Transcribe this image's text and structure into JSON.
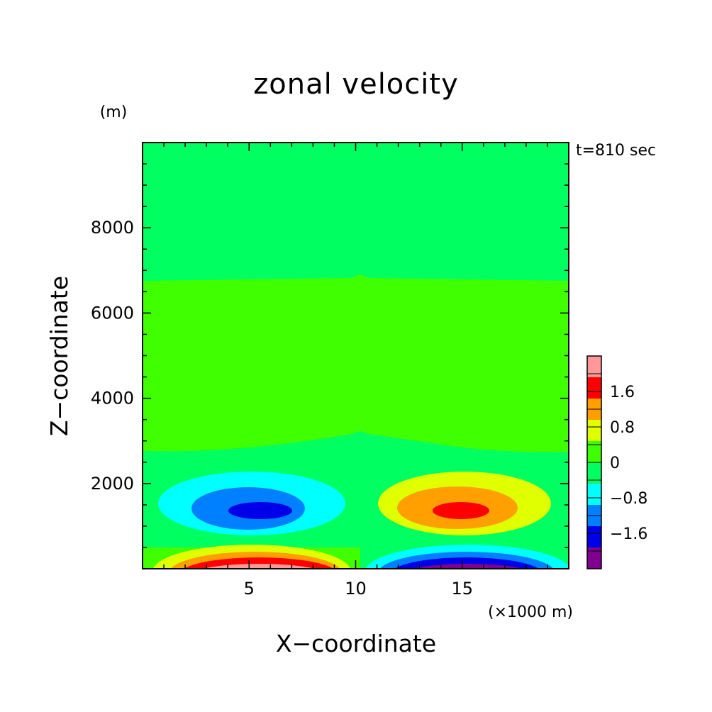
{
  "chart_data": {
    "type": "heatmap",
    "title": "zonal velocity",
    "xlabel": "X−coordinate",
    "ylabel": "Z−coordinate",
    "x_unit": "(×1000 m)",
    "y_unit": "(m)",
    "time_label": "t=810 sec",
    "xlim": [
      0,
      20
    ],
    "ylim": [
      0,
      10000
    ],
    "x_ticks": [
      "5",
      "10",
      "15"
    ],
    "y_ticks": [
      "2000",
      "4000",
      "6000",
      "8000"
    ],
    "x_tick_values": [
      5,
      10,
      15
    ],
    "y_tick_values": [
      2000,
      4000,
      6000,
      8000
    ],
    "grid": false,
    "legend_position": "right-bottom",
    "colorbar": {
      "levels": [
        -2.4,
        -2.0,
        -1.6,
        -1.2,
        -0.8,
        -0.4,
        0,
        0.4,
        0.8,
        1.2,
        1.6,
        2.0,
        2.4
      ],
      "colors": [
        "#800090",
        "#0000e8",
        "#0080ff",
        "#00ffff",
        "#00ff60",
        "#40ff00",
        "#e0ff00",
        "#ffa000",
        "#ff0000",
        "#ff9898"
      ],
      "tick_labels": [
        "−1.6",
        "−0.8",
        "0",
        "0.8",
        "1.6"
      ],
      "tick_values": [
        -1.6,
        -0.8,
        0,
        0.8,
        1.6
      ]
    },
    "features": [
      {
        "sign": "negative",
        "center_x": 5,
        "center_z": 1400,
        "min_value": -1.6
      },
      {
        "sign": "positive",
        "center_x": 14.5,
        "center_z": 1400,
        "max_value": 1.6
      },
      {
        "sign": "positive",
        "center_x": 6,
        "center_z": 0,
        "max_value": 2.4
      },
      {
        "sign": "negative",
        "center_x": 14.5,
        "center_z": 0,
        "min_value": -2.4
      }
    ]
  }
}
